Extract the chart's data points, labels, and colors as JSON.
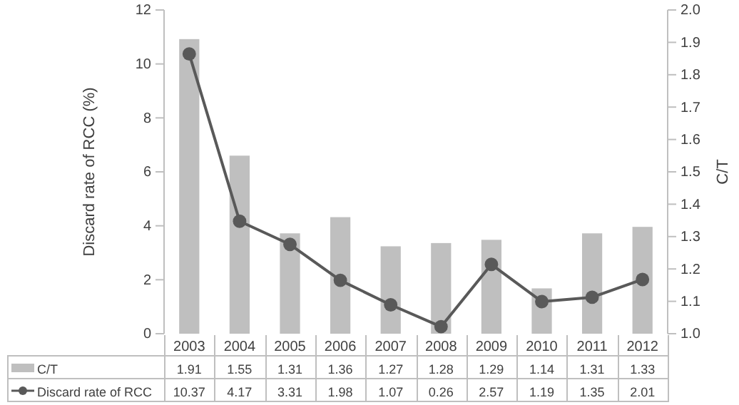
{
  "chart_data": {
    "type": "bar",
    "categories": [
      "2003",
      "2004",
      "2005",
      "2006",
      "2007",
      "2008",
      "2009",
      "2010",
      "2011",
      "2012"
    ],
    "series": [
      {
        "name": "C/T",
        "type": "bar",
        "axis": "y2",
        "color": "#bfbfbf",
        "values": [
          1.91,
          1.55,
          1.31,
          1.36,
          1.27,
          1.28,
          1.29,
          1.14,
          1.31,
          1.33
        ]
      },
      {
        "name": "Discard rate of RCC",
        "type": "line",
        "axis": "y",
        "color": "#595959",
        "marker": "circle",
        "values": [
          10.37,
          4.17,
          3.31,
          1.98,
          1.07,
          0.26,
          2.57,
          1.19,
          1.35,
          2.01
        ]
      }
    ],
    "ylabel": "Discard rate of RCC (%)",
    "y2label": "C/T",
    "ylim": [
      0,
      12
    ],
    "yticks": [
      0,
      2,
      4,
      6,
      8,
      10,
      12
    ],
    "y2lim": [
      1.0,
      2.0
    ],
    "y2ticks": [
      {
        "value": 1.0,
        "label": "1.0"
      },
      {
        "value": 1.1,
        "label": "1.1"
      },
      {
        "value": 1.2,
        "label": "1.2"
      },
      {
        "value": 1.3,
        "label": "1.3"
      },
      {
        "value": 1.4,
        "label": "1.4"
      },
      {
        "value": 1.5,
        "label": "1.5"
      },
      {
        "value": 1.6,
        "label": "1.6"
      },
      {
        "value": 1.7,
        "label": "1.7"
      },
      {
        "value": 1.8,
        "label": "1.8"
      },
      {
        "value": 1.9,
        "label": "1.9"
      },
      {
        "value": 2.0,
        "label": "2.0"
      }
    ],
    "grid": false,
    "legend": "bottom",
    "data_labels": true
  }
}
